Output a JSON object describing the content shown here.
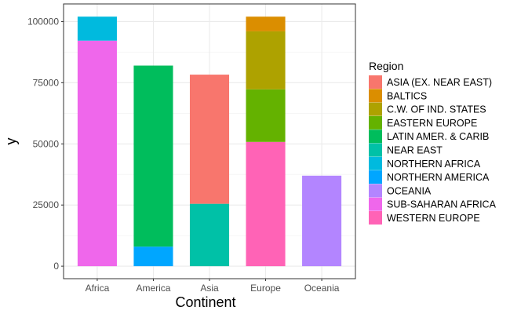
{
  "chart_data": {
    "type": "bar",
    "stacked": true,
    "xlabel": "Continent",
    "ylabel": "y",
    "ylim": [
      0,
      105000
    ],
    "yticks": [
      0,
      25000,
      50000,
      75000,
      100000
    ],
    "ytick_labels": [
      "0",
      "25000",
      "50000",
      "75000",
      "100000"
    ],
    "categories": [
      "Africa",
      "America",
      "Asia",
      "Europe",
      "Oceania"
    ],
    "grid": true,
    "legend_position": "right",
    "legend_title": "Region",
    "series": [
      {
        "name": "ASIA (EX. NEAR EAST)",
        "color": "#F8766D",
        "values": [
          0,
          0,
          52800,
          0,
          0
        ]
      },
      {
        "name": "BALTICS",
        "color": "#DB8E00",
        "values": [
          0,
          0,
          0,
          6000,
          0
        ]
      },
      {
        "name": "C.W. OF IND. STATES",
        "color": "#AEA200",
        "values": [
          0,
          0,
          0,
          23700,
          0
        ]
      },
      {
        "name": "EASTERN EUROPE",
        "color": "#64B200",
        "values": [
          0,
          0,
          0,
          21500,
          0
        ]
      },
      {
        "name": "LATIN AMER. & CARIB",
        "color": "#00BD5C",
        "values": [
          0,
          74000,
          0,
          0,
          0
        ]
      },
      {
        "name": "NEAR EAST",
        "color": "#00C1A7",
        "values": [
          0,
          0,
          25500,
          0,
          0
        ]
      },
      {
        "name": "NORTHERN AFRICA",
        "color": "#00BADE",
        "values": [
          9800,
          0,
          0,
          0,
          0
        ]
      },
      {
        "name": "NORTHERN AMERICA",
        "color": "#00A6FF",
        "values": [
          0,
          8000,
          0,
          0,
          0
        ]
      },
      {
        "name": "OCEANIA",
        "color": "#B385FF",
        "values": [
          0,
          0,
          0,
          0,
          37000
        ]
      },
      {
        "name": "SUB-SAHARAN AFRICA",
        "color": "#EF67EB",
        "values": [
          92200,
          0,
          0,
          0,
          0
        ]
      },
      {
        "name": "WESTERN EUROPE",
        "color": "#FF63B6",
        "values": [
          0,
          0,
          0,
          50800,
          0
        ]
      }
    ]
  }
}
